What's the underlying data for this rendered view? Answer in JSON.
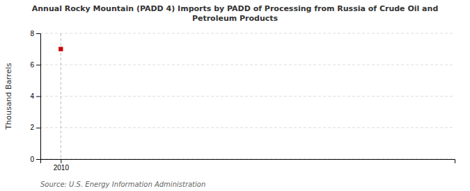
{
  "chart_data": {
    "type": "scatter",
    "title": "Annual Rocky Mountain (PADD 4) Imports by PADD of Processing from Russia of Crude Oil and\nPetroleum Products",
    "ylabel": "Thousand Barrels",
    "x": [
      2010
    ],
    "values": [
      7
    ],
    "color": "#cc0000",
    "marker": "square",
    "xlim": [
      2009.3,
      2023.5
    ],
    "ylim": [
      0,
      8
    ],
    "xticks": [
      2010
    ],
    "yticks": [
      0,
      2,
      4,
      6,
      8
    ],
    "grid": true,
    "annotations": [
      "Source: U.S. Energy Information Administration"
    ]
  }
}
